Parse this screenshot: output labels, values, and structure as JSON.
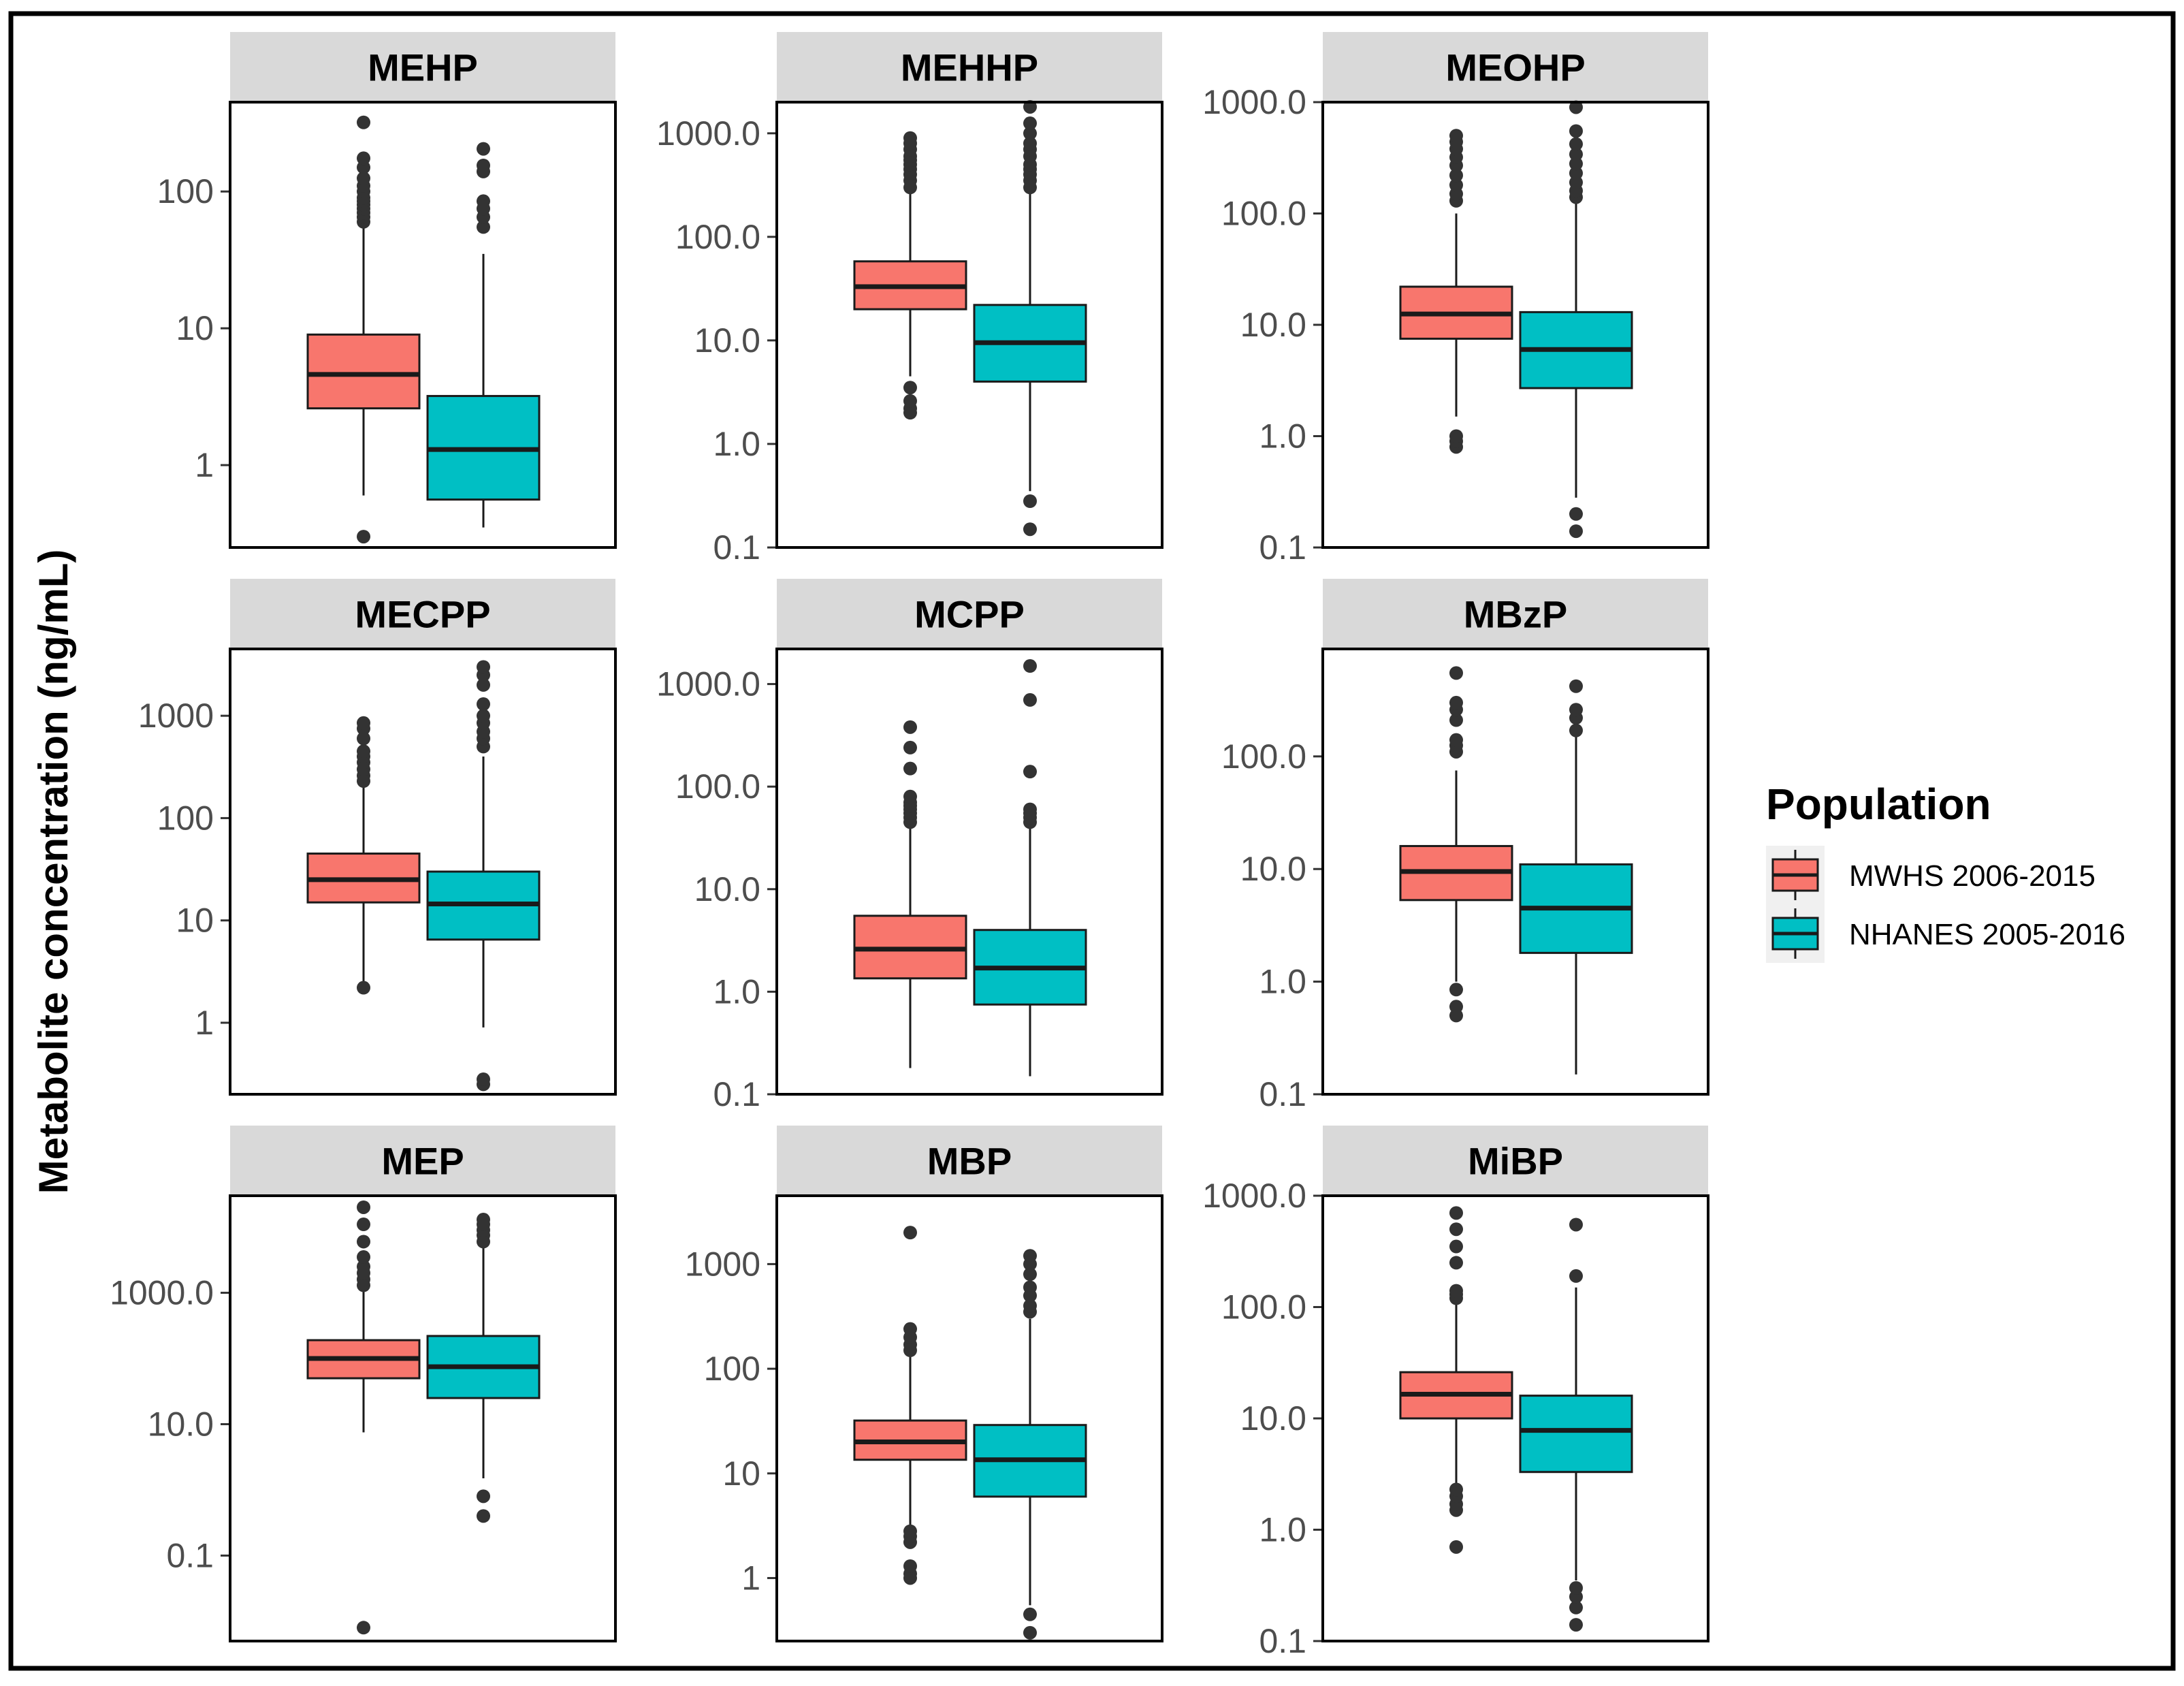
{
  "figure": {
    "ylabel": "Metabolite concentration (ng/mL)",
    "legend_title": "Population",
    "legend_position": "right"
  },
  "colors": {
    "MWHS 2006-2015": "#F8766D",
    "NHANES 2005-2016": "#00BFC4",
    "strip": "#D9D9D9",
    "outline": "#1a1a1a"
  },
  "chart_data": [
    {
      "type": "boxplot",
      "title": "MEHP",
      "yscale": "log10",
      "ylim": [
        0.25,
        450
      ],
      "ticks": [
        1,
        10,
        100
      ],
      "tick_labels": [
        "1",
        "10",
        "100"
      ],
      "series": [
        {
          "name": "MWHS 2006-2015",
          "q1": 2.6,
          "median": 4.6,
          "q3": 9.0,
          "whisker_low": 0.6,
          "whisker_high": 55,
          "outliers": [
            0.3,
            60,
            65,
            70,
            75,
            80,
            85,
            90,
            100,
            110,
            125,
            150,
            175,
            320
          ]
        },
        {
          "name": "NHANES 2005-2016",
          "q1": 0.56,
          "median": 1.3,
          "q3": 3.2,
          "whisker_low": 0.35,
          "whisker_high": 35,
          "outliers": [
            55,
            65,
            75,
            85,
            140,
            155,
            205
          ]
        }
      ]
    },
    {
      "type": "boxplot",
      "title": "MEHHP",
      "yscale": "log10",
      "ylim": [
        0.1,
        2000
      ],
      "ticks": [
        0.1,
        1,
        10,
        100,
        1000
      ],
      "tick_labels": [
        "0.1",
        "1.0",
        "10.0",
        "100.0",
        "1000.0"
      ],
      "series": [
        {
          "name": "MWHS 2006-2015",
          "q1": 20,
          "median": 33,
          "q3": 58,
          "whisker_low": 4.5,
          "whisker_high": 280,
          "outliers": [
            2.0,
            2.2,
            2.6,
            3.5,
            300,
            350,
            400,
            450,
            500,
            550,
            600,
            700,
            800,
            900
          ]
        },
        {
          "name": "NHANES 2005-2016",
          "q1": 4.0,
          "median": 9.5,
          "q3": 22,
          "whisker_low": 0.35,
          "whisker_high": 280,
          "outliers": [
            0.15,
            0.28,
            300,
            350,
            400,
            450,
            500,
            600,
            700,
            800,
            1000,
            1250,
            1800
          ]
        }
      ]
    },
    {
      "type": "boxplot",
      "title": "MEOHP",
      "yscale": "log10",
      "ylim": [
        0.1,
        1000
      ],
      "ticks": [
        0.1,
        1,
        10,
        100,
        1000
      ],
      "tick_labels": [
        "0.1",
        "1.0",
        "10.0",
        "100.0",
        "1000.0"
      ],
      "series": [
        {
          "name": "MWHS 2006-2015",
          "q1": 7.5,
          "median": 12.5,
          "q3": 22,
          "whisker_low": 1.5,
          "whisker_high": 100,
          "outliers": [
            0.8,
            0.9,
            1.0,
            130,
            150,
            180,
            220,
            270,
            320,
            380,
            440,
            500
          ]
        },
        {
          "name": "NHANES 2005-2016",
          "q1": 2.7,
          "median": 6.0,
          "q3": 13,
          "whisker_low": 0.28,
          "whisker_high": 130,
          "outliers": [
            0.14,
            0.2,
            140,
            160,
            190,
            230,
            280,
            340,
            420,
            550,
            900
          ]
        }
      ]
    },
    {
      "type": "boxplot",
      "title": "MECPP",
      "yscale": "log10",
      "ylim": [
        0.2,
        4500
      ],
      "ticks": [
        1,
        10,
        100,
        1000
      ],
      "tick_labels": [
        "1",
        "10",
        "100",
        "1000"
      ],
      "series": [
        {
          "name": "MWHS 2006-2015",
          "q1": 15,
          "median": 25,
          "q3": 45,
          "whisker_low": 2.2,
          "whisker_high": 210,
          "outliers": [
            2.2,
            230,
            260,
            300,
            350,
            400,
            450,
            600,
            750,
            850
          ]
        },
        {
          "name": "NHANES 2005-2016",
          "q1": 6.5,
          "median": 14.5,
          "q3": 30,
          "whisker_low": 0.9,
          "whisker_high": 400,
          "outliers": [
            0.25,
            0.28,
            500,
            600,
            700,
            850,
            1000,
            1300,
            2000,
            2500,
            3000
          ]
        }
      ]
    },
    {
      "type": "boxplot",
      "title": "MCPP",
      "yscale": "log10",
      "ylim": [
        0.1,
        2200
      ],
      "ticks": [
        0.1,
        1,
        10,
        100,
        1000
      ],
      "tick_labels": [
        "0.1",
        "1.0",
        "10.0",
        "100.0",
        "1000.0"
      ],
      "series": [
        {
          "name": "MWHS 2006-2015",
          "q1": 1.35,
          "median": 2.6,
          "q3": 5.5,
          "whisker_low": 0.18,
          "whisker_high": 40,
          "outliers": [
            45,
            50,
            55,
            60,
            65,
            70,
            80,
            150,
            240,
            380
          ]
        },
        {
          "name": "NHANES 2005-2016",
          "q1": 0.75,
          "median": 1.7,
          "q3": 4.0,
          "whisker_low": 0.15,
          "whisker_high": 40,
          "outliers": [
            45,
            50,
            55,
            60,
            140,
            700,
            1500
          ]
        }
      ]
    },
    {
      "type": "boxplot",
      "title": "MBzP",
      "yscale": "log10",
      "ylim": [
        0.1,
        900
      ],
      "ticks": [
        0.1,
        1,
        10,
        100
      ],
      "tick_labels": [
        "0.1",
        "1.0",
        "10.0",
        "100.0"
      ],
      "series": [
        {
          "name": "MWHS 2006-2015",
          "q1": 5.3,
          "median": 9.5,
          "q3": 16,
          "whisker_low": 1.0,
          "whisker_high": 75,
          "outliers": [
            0.5,
            0.6,
            0.85,
            110,
            125,
            140,
            210,
            260,
            300,
            550
          ]
        },
        {
          "name": "NHANES 2005-2016",
          "q1": 1.8,
          "median": 4.5,
          "q3": 11,
          "whisker_low": 0.15,
          "whisker_high": 150,
          "outliers": [
            170,
            220,
            260,
            420
          ]
        }
      ]
    },
    {
      "type": "boxplot",
      "title": "MEP",
      "yscale": "log10",
      "ylim": [
        0.005,
        30000
      ],
      "ticks": [
        0.1,
        10,
        1000
      ],
      "tick_labels": [
        "0.1",
        "10.0",
        "1000.0"
      ],
      "series": [
        {
          "name": "MWHS 2006-2015",
          "q1": 50,
          "median": 100,
          "q3": 190,
          "whisker_low": 7.5,
          "whisker_high": 1100,
          "outliers": [
            0.008,
            1300,
            1600,
            2000,
            2500,
            3500,
            6000,
            11000,
            20000
          ]
        },
        {
          "name": "NHANES 2005-2016",
          "q1": 25,
          "median": 75,
          "q3": 220,
          "whisker_low": 1.5,
          "whisker_high": 5500,
          "outliers": [
            0.4,
            0.8,
            6000,
            7500,
            9000,
            11000,
            13000
          ]
        }
      ]
    },
    {
      "type": "boxplot",
      "title": "MBP",
      "yscale": "log10",
      "ylim": [
        0.25,
        4500
      ],
      "ticks": [
        1,
        10,
        100,
        1000
      ],
      "tick_labels": [
        "1",
        "10",
        "100",
        "1000"
      ],
      "series": [
        {
          "name": "MWHS 2006-2015",
          "q1": 13.5,
          "median": 20,
          "q3": 32,
          "whisker_low": 3.0,
          "whisker_high": 130,
          "outliers": [
            1.0,
            1.1,
            1.3,
            2.2,
            2.5,
            2.8,
            150,
            170,
            200,
            240,
            2000
          ]
        },
        {
          "name": "NHANES 2005-2016",
          "q1": 6.0,
          "median": 13.5,
          "q3": 29,
          "whisker_low": 0.55,
          "whisker_high": 300,
          "outliers": [
            0.3,
            0.45,
            350,
            400,
            500,
            600,
            800,
            1000,
            1200
          ]
        }
      ]
    },
    {
      "type": "boxplot",
      "title": "MiBP",
      "yscale": "log10",
      "ylim": [
        0.1,
        1000
      ],
      "ticks": [
        0.1,
        1,
        10,
        100,
        1000
      ],
      "tick_labels": [
        "0.1",
        "1.0",
        "10.0",
        "100.0",
        "1000.0"
      ],
      "series": [
        {
          "name": "MWHS 2006-2015",
          "q1": 10,
          "median": 16.5,
          "q3": 26,
          "whisker_low": 2.5,
          "whisker_high": 110,
          "outliers": [
            0.7,
            1.5,
            1.7,
            2.0,
            2.3,
            120,
            130,
            140,
            250,
            350,
            500,
            700
          ]
        },
        {
          "name": "NHANES 2005-2016",
          "q1": 3.3,
          "median": 7.8,
          "q3": 16,
          "whisker_low": 0.35,
          "whisker_high": 150,
          "outliers": [
            0.14,
            0.2,
            0.25,
            0.3,
            190,
            550
          ]
        }
      ]
    }
  ]
}
